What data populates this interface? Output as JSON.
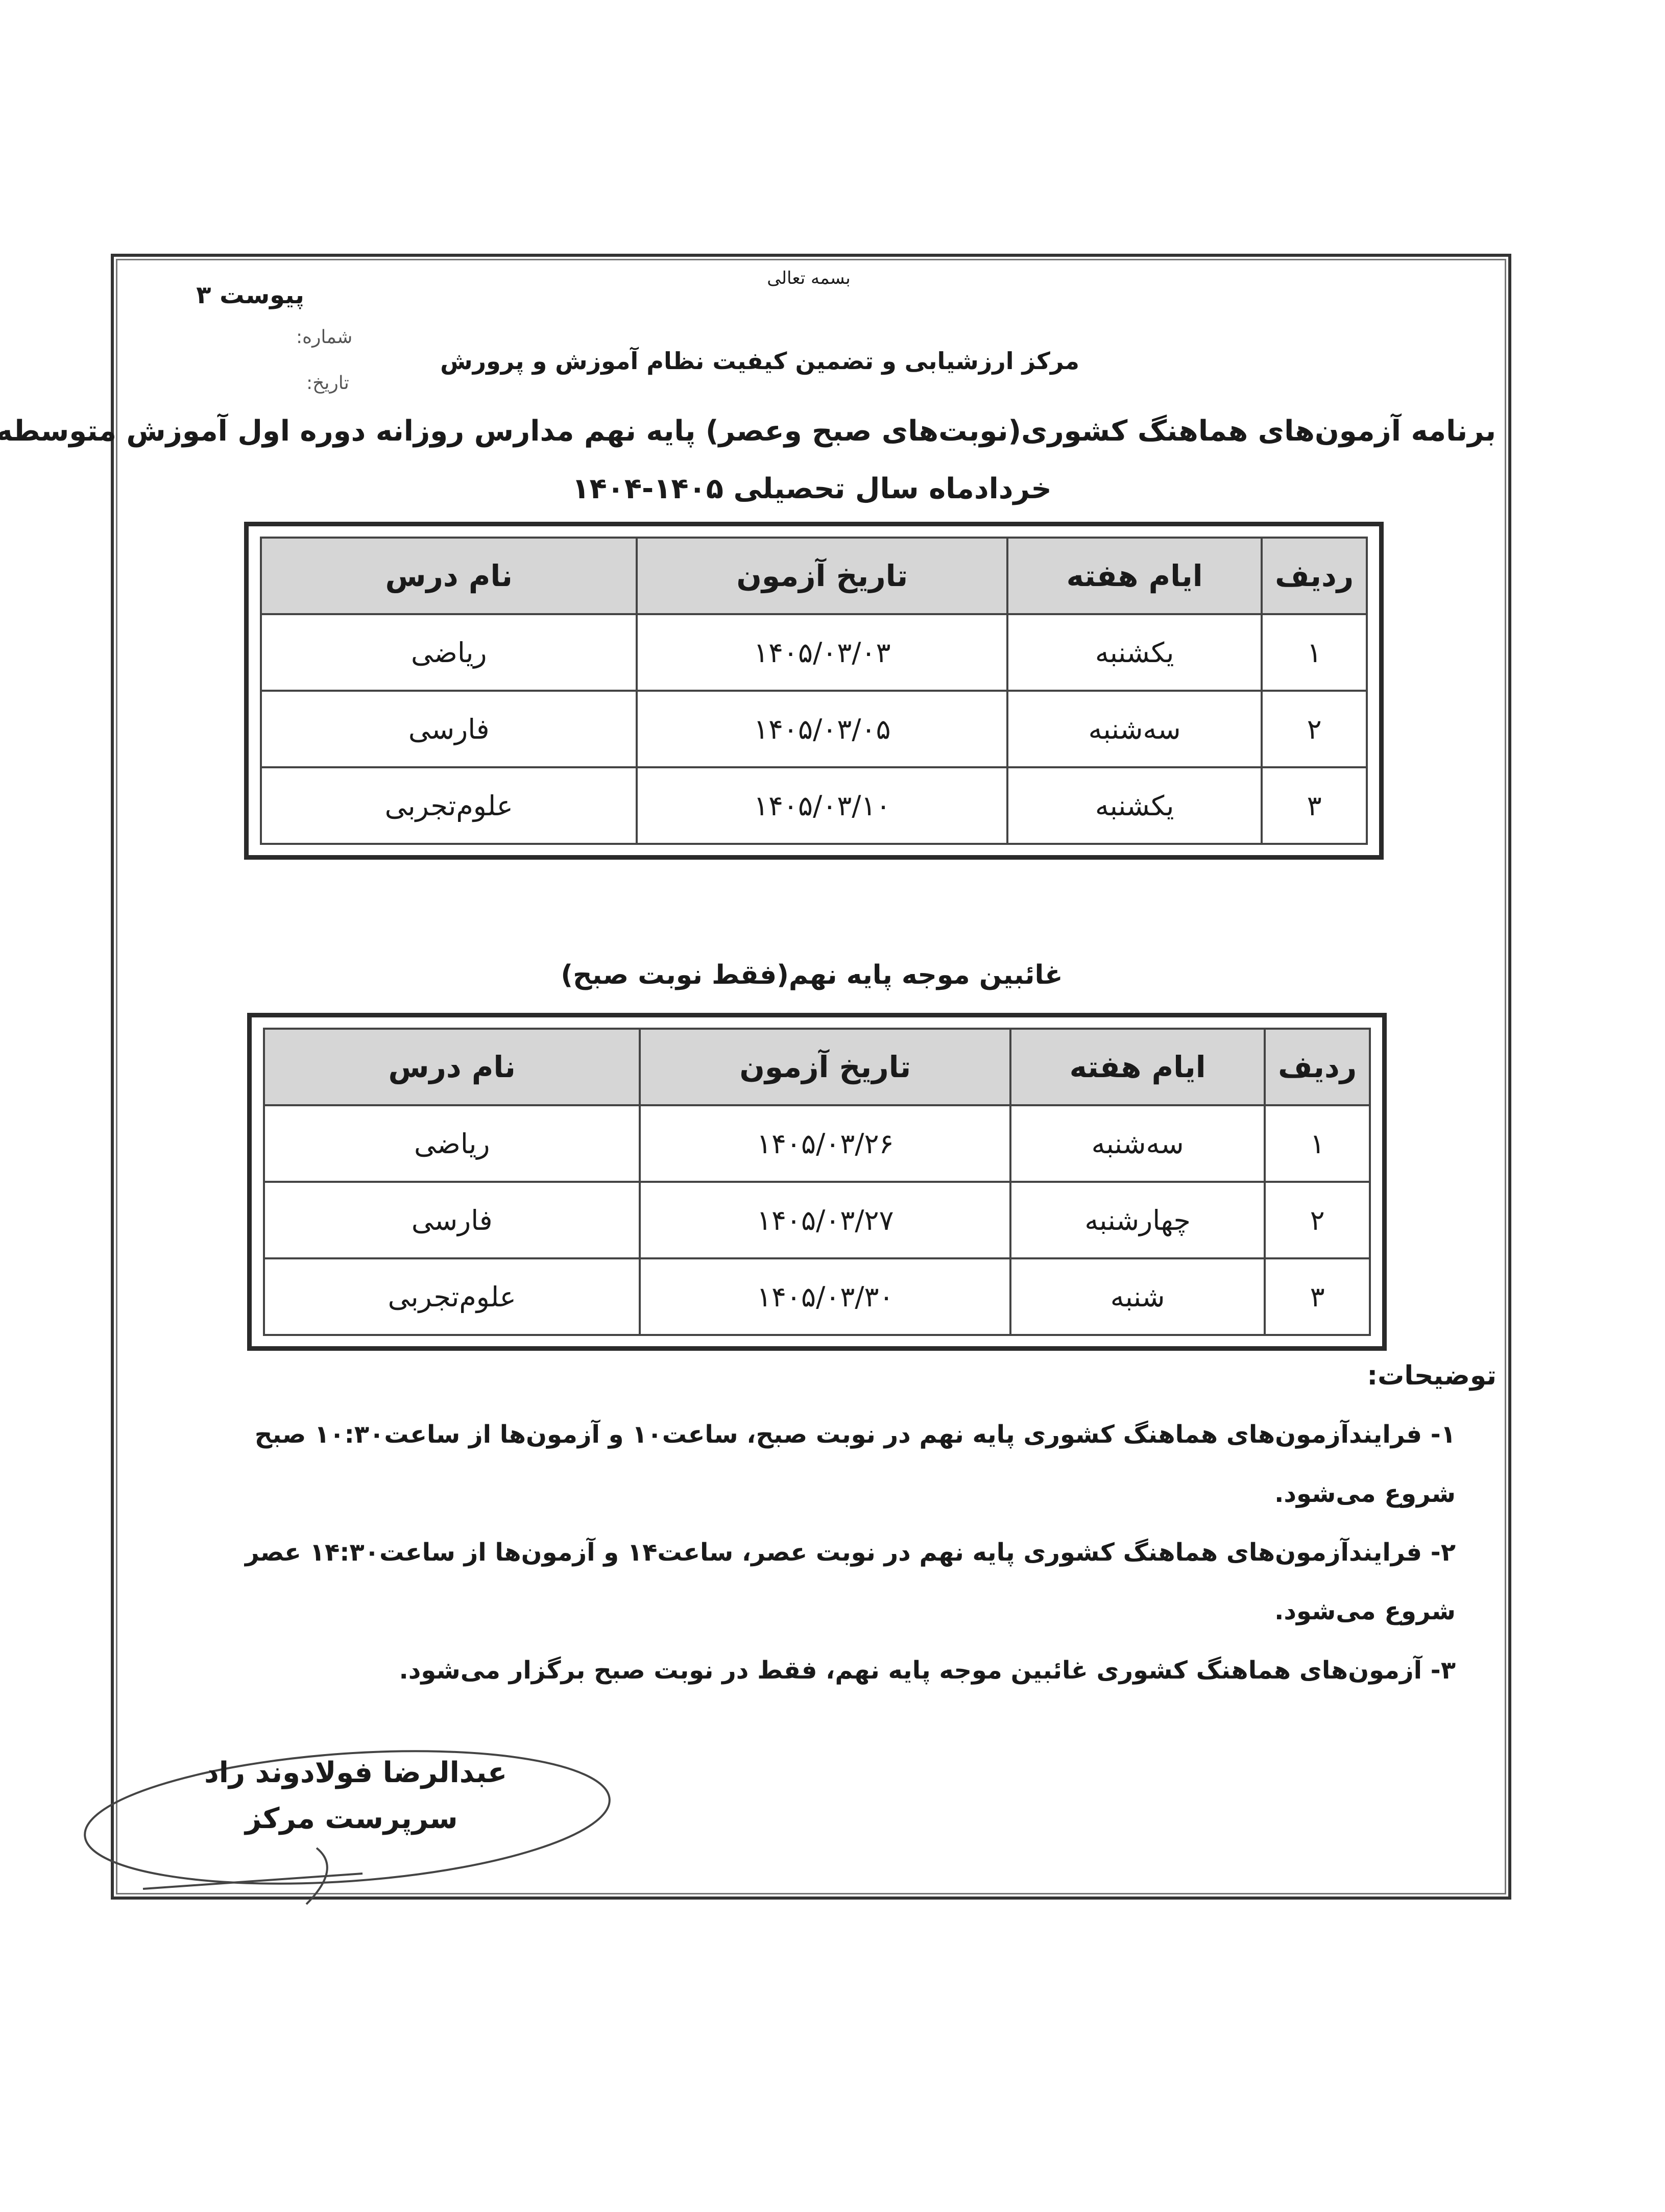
{
  "header": {
    "invocation": "بسمه تعالی",
    "attachment": "پیوست ۳",
    "number_label": "شماره:",
    "date_label": "تاریخ:",
    "organization": "مرکز ارزشیابی و تضمین کیفیت نظام آموزش و پرورش",
    "title": "برنامه آزمون‌های هماهنگ کشوری(نوبت‌های صبح وعصر) پایه نهم مدارس روزانه دوره اول آموزش متوسطه",
    "subtitle": "خردادماه سال تحصیلی ۱۴۰۵-۱۴۰۴"
  },
  "table1": {
    "columns": [
      "ردیف",
      "ایام هفته",
      "تاریخ آزمون",
      "نام درس"
    ],
    "rows": [
      [
        "۱",
        "یکشنبه",
        "۱۴۰۵/۰۳/۰۳",
        "ریاضی"
      ],
      [
        "۲",
        "سه‌شنبه",
        "۱۴۰۵/۰۳/۰۵",
        "فارسی"
      ],
      [
        "۳",
        "یکشنبه",
        "۱۴۰۵/۰۳/۱۰",
        "علوم‌تجربی"
      ]
    ]
  },
  "table2": {
    "title": "غائبین موجه پایه نهم(فقط نوبت صبح)",
    "columns": [
      "ردیف",
      "ایام هفته",
      "تاریخ آزمون",
      "نام درس"
    ],
    "rows": [
      [
        "۱",
        "سه‌شنبه",
        "۱۴۰۵/۰۳/۲۶",
        "ریاضی"
      ],
      [
        "۲",
        "چهارشنبه",
        "۱۴۰۵/۰۳/۲۷",
        "فارسی"
      ],
      [
        "۳",
        "شنبه",
        "۱۴۰۵/۰۳/۳۰",
        "علوم‌تجربی"
      ]
    ]
  },
  "notes": {
    "heading": "توضیحات:",
    "items": [
      "۱- فرایندآزمون‌های هماهنگ کشوری پایه نهم در نوبت صبح، ساعت۱۰ و آزمون‌ها از ساعت۱۰:۳۰ صبح",
      "شروع می‌شود.",
      "۲- فرایندآزمون‌های هماهنگ کشوری پایه نهم در نوبت عصر، ساعت۱۴ و آزمون‌ها از ساعت۱۴:۳۰ عصر",
      "شروع می‌شود.",
      "۳- آزمون‌های هماهنگ کشوری غائبین موجه پایه نهم، فقط در نوبت صبح برگزار می‌شود."
    ]
  },
  "signature": {
    "name": "عبدالرضا فولادوند راد",
    "role": "سرپرست مرکز"
  }
}
